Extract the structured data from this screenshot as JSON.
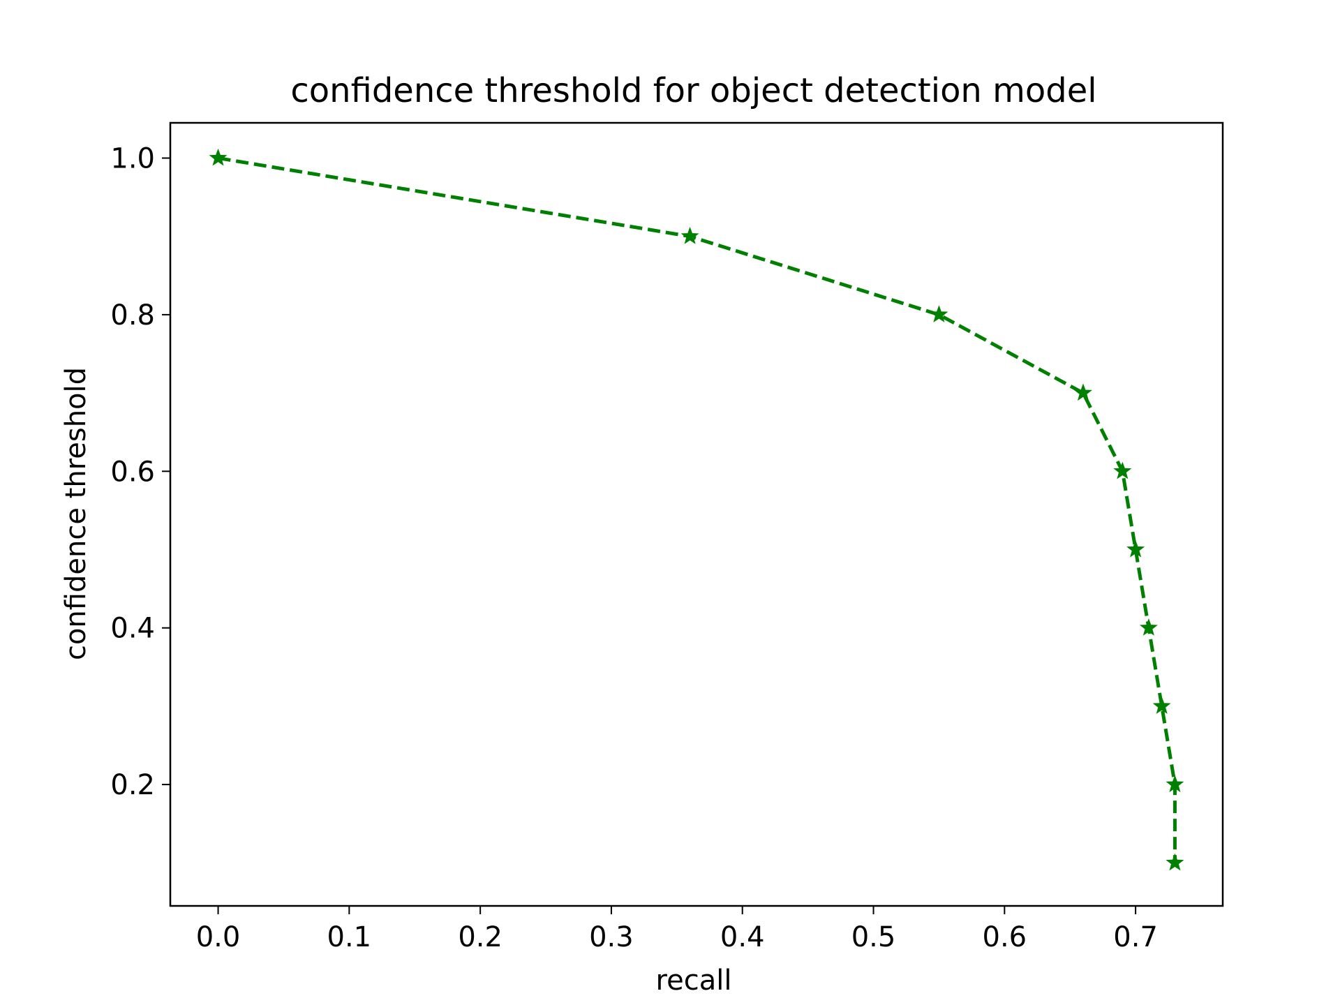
{
  "chart_data": {
    "type": "line",
    "title": "confidence threshold for object detection model",
    "xlabel": "recall",
    "ylabel": "confidence threshold",
    "xlim": [
      -0.0365,
      0.7665
    ],
    "ylim": [
      0.045,
      1.045
    ],
    "xticks": [
      0.0,
      0.1,
      0.2,
      0.3,
      0.4,
      0.5,
      0.6,
      0.7
    ],
    "xtick_labels": [
      "0.0",
      "0.1",
      "0.2",
      "0.3",
      "0.4",
      "0.5",
      "0.6",
      "0.7"
    ],
    "yticks": [
      0.2,
      0.4,
      0.6,
      0.8,
      1.0
    ],
    "ytick_labels": [
      "0.2",
      "0.4",
      "0.6",
      "0.8",
      "1.0"
    ],
    "grid": false,
    "series": [
      {
        "color": "#008000",
        "line_style": "dashed",
        "marker": "star",
        "x": [
          0.0,
          0.36,
          0.55,
          0.66,
          0.69,
          0.7,
          0.71,
          0.72,
          0.73,
          0.73
        ],
        "y": [
          1.0,
          0.9,
          0.8,
          0.7,
          0.6,
          0.5,
          0.4,
          0.3,
          0.2,
          0.1
        ]
      }
    ]
  }
}
